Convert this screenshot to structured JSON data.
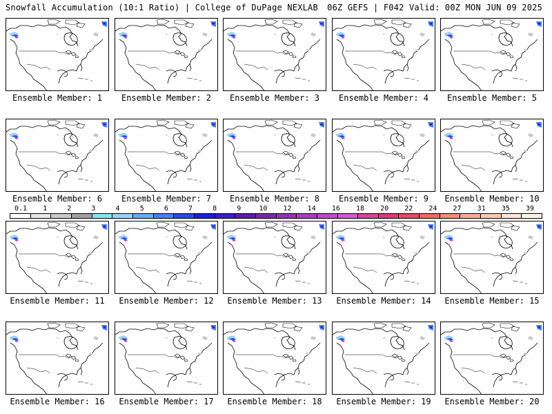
{
  "header": {
    "title_left": "Snowfall Accumulation (10:1 Ratio) | College of DuPage NEXLAB",
    "title_right": "06Z GEFS | F042 Valid: 00Z MON JUN 09 2025"
  },
  "members": [
    "Ensemble Member: 1",
    "Ensemble Member: 2",
    "Ensemble Member: 3",
    "Ensemble Member: 4",
    "Ensemble Member: 5",
    "Ensemble Member: 6",
    "Ensemble Member: 7",
    "Ensemble Member: 8",
    "Ensemble Member: 9",
    "Ensemble Member: 10",
    "Ensemble Member: 11",
    "Ensemble Member: 12",
    "Ensemble Member: 13",
    "Ensemble Member: 14",
    "Ensemble Member: 15",
    "Ensemble Member: 16",
    "Ensemble Member: 17",
    "Ensemble Member: 18",
    "Ensemble Member: 19",
    "Ensemble Member: 20"
  ],
  "legend": {
    "ticks": [
      "0.1",
      "1",
      "2",
      "3",
      "4",
      "5",
      "6",
      "7",
      "8",
      "9",
      "10",
      "12",
      "14",
      "16",
      "18",
      "20",
      "22",
      "24",
      "27",
      "31",
      "35",
      "39"
    ],
    "colors": [
      "#ffffff",
      "#e6e6e6",
      "#c8c8c8",
      "#a0a0a0",
      "#80e6f0",
      "#9ad2f8",
      "#6aaaf4",
      "#4a7ef0",
      "#2a4ae6",
      "#1e1ee0",
      "#3a1ec8",
      "#5a1ea8",
      "#7a2aa8",
      "#9632b4",
      "#aa3ebe",
      "#be4ac8",
      "#d05ccc",
      "#d2469a",
      "#dc3a78",
      "#e64a64",
      "#ec6a64",
      "#f08c7a",
      "#f4aa96",
      "#f8c8b4",
      "#fce4d6",
      "#fff4ea"
    ]
  }
}
